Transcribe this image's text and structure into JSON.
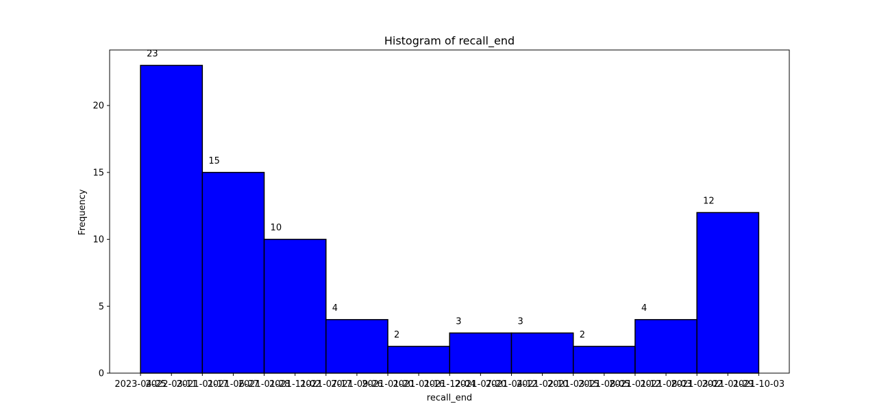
{
  "chart_data": {
    "type": "bar",
    "title": "Histogram of recall_end",
    "xlabel": "recall_end",
    "ylabel": "Frequency",
    "ylim": [
      0,
      24.15
    ],
    "grid": false,
    "legend": "none",
    "bar_color": "#0000ff",
    "edge_color": "#000000",
    "values": [
      23,
      15,
      10,
      4,
      2,
      3,
      3,
      2,
      4,
      12
    ],
    "y_ticks": [
      0,
      5,
      10,
      15,
      20
    ],
    "x_tick_labels": [
      "2023-04-25",
      "2022-03-11",
      "2021-01-17",
      "2021-06-27",
      "2021-01-28",
      "2021-11-02",
      "2021-07-17",
      "2021-09-26",
      "2021-01-20",
      "2021-01-16",
      "2021-12-04",
      "2021-07-20",
      "2021-04-12",
      "2021-02-10",
      "2021-03-15",
      "2021-08-05",
      "2021-01-12",
      "2021-08-03",
      "2021-03-02",
      "2021-01-29",
      "2021-10-03"
    ]
  }
}
